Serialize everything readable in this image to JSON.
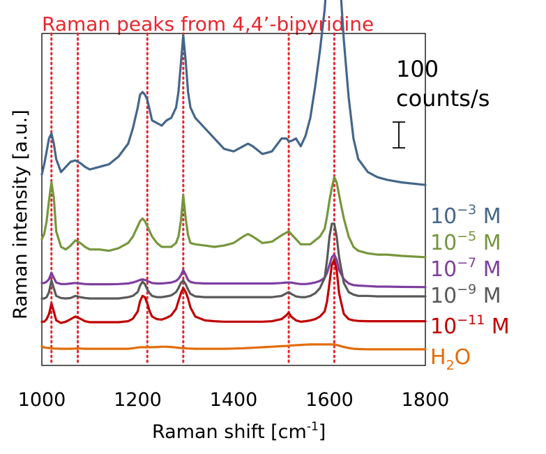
{
  "chart_data": {
    "type": "line",
    "title": "Raman peaks from 4,4’-bipyridine",
    "xlabel": "Raman shift [cm",
    "xlabel_sup": "-1",
    "xlabel_close": "]",
    "ylabel": "Raman intensity [a.u.]",
    "xlim": [
      1000,
      1800
    ],
    "x_ticks": [
      "1000",
      "1200",
      "1400",
      "1600",
      "1800"
    ],
    "x_tick_values": [
      1000,
      1200,
      1400,
      1600,
      1800
    ],
    "scale_bar": {
      "value_text": "100",
      "unit_text": "counts/s",
      "counts": 100
    },
    "peak_markers": [
      1020,
      1075,
      1220,
      1295,
      1515,
      1610
    ],
    "peak_marker_color": "#e8262d",
    "title_color": "#e8262d",
    "x": [
      1000,
      1005,
      1010,
      1015,
      1020,
      1025,
      1030,
      1040,
      1050,
      1060,
      1070,
      1080,
      1090,
      1100,
      1120,
      1140,
      1160,
      1180,
      1190,
      1200,
      1205,
      1210,
      1215,
      1220,
      1225,
      1230,
      1240,
      1250,
      1260,
      1270,
      1280,
      1285,
      1290,
      1295,
      1300,
      1305,
      1310,
      1320,
      1340,
      1360,
      1380,
      1400,
      1420,
      1430,
      1440,
      1460,
      1480,
      1500,
      1510,
      1515,
      1520,
      1530,
      1540,
      1550,
      1560,
      1570,
      1580,
      1590,
      1595,
      1600,
      1605,
      1610,
      1615,
      1620,
      1630,
      1640,
      1650,
      1660,
      1680,
      1700,
      1720,
      1750,
      1800
    ],
    "series": [
      {
        "name_base": "10",
        "name_sup": "−3",
        "name_suffix": " M",
        "color": "#44668a",
        "values": [
          480,
          520,
          570,
          620,
          640,
          600,
          540,
          490,
          510,
          530,
          535,
          525,
          510,
          500,
          510,
          520,
          550,
          600,
          660,
          740,
          790,
          800,
          790,
          770,
          730,
          690,
          680,
          670,
          690,
          700,
          740,
          800,
          910,
          1020,
          920,
          800,
          740,
          700,
          660,
          620,
          580,
          570,
          590,
          600,
          590,
          560,
          570,
          620,
          620,
          610,
          610,
          620,
          590,
          630,
          700,
          820,
          960,
          1120,
          1250,
          1380,
          1450,
          1460,
          1420,
          1280,
          1000,
          780,
          620,
          540,
          490,
          470,
          460,
          450,
          440
        ]
      },
      {
        "name_base": "10",
        "name_sup": "−5",
        "name_suffix": " M",
        "color": "#76963c",
        "values": [
          230,
          250,
          300,
          380,
          450,
          390,
          260,
          200,
          190,
          205,
          225,
          215,
          200,
          190,
          190,
          185,
          195,
          215,
          240,
          280,
          300,
          310,
          300,
          280,
          260,
          240,
          215,
          200,
          200,
          200,
          215,
          240,
          300,
          400,
          310,
          245,
          215,
          210,
          205,
          200,
          205,
          215,
          240,
          250,
          240,
          215,
          220,
          245,
          255,
          260,
          250,
          230,
          210,
          210,
          210,
          225,
          240,
          270,
          320,
          380,
          430,
          470,
          450,
          400,
          310,
          240,
          200,
          185,
          175,
          170,
          170,
          165,
          160
        ]
      },
      {
        "name_base": "10",
        "name_sup": "−7",
        "name_suffix": " M",
        "color": "#7d3fa0",
        "values": [
          60,
          60,
          65,
          75,
          100,
          80,
          62,
          56,
          56,
          58,
          60,
          58,
          56,
          55,
          55,
          55,
          56,
          58,
          62,
          68,
          72,
          74,
          72,
          68,
          64,
          60,
          58,
          58,
          60,
          62,
          68,
          76,
          90,
          110,
          92,
          72,
          64,
          60,
          58,
          58,
          58,
          58,
          58,
          58,
          58,
          58,
          58,
          60,
          62,
          62,
          62,
          58,
          56,
          56,
          58,
          62,
          68,
          80,
          100,
          130,
          160,
          170,
          150,
          110,
          75,
          58,
          52,
          50,
          48,
          46,
          46,
          45,
          44
        ]
      },
      {
        "name_base": "10",
        "name_sup": "−9",
        "name_suffix": " M",
        "color": "#595959",
        "values": [
          0,
          0,
          5,
          25,
          70,
          40,
          10,
          2,
          0,
          2,
          10,
          5,
          2,
          0,
          0,
          0,
          0,
          5,
          10,
          25,
          50,
          65,
          55,
          35,
          20,
          10,
          5,
          5,
          8,
          12,
          25,
          40,
          60,
          70,
          55,
          35,
          18,
          8,
          5,
          5,
          5,
          5,
          5,
          5,
          5,
          5,
          5,
          10,
          20,
          25,
          18,
          8,
          5,
          5,
          10,
          20,
          40,
          80,
          150,
          240,
          290,
          290,
          240,
          160,
          60,
          25,
          15,
          10,
          10,
          8,
          8,
          8,
          8
        ]
      },
      {
        "name_base": "10",
        "name_sup": "−11",
        "name_suffix": " M",
        "color": "#c00000",
        "values": [
          -90,
          -90,
          -80,
          -60,
          -20,
          -50,
          -85,
          -95,
          -90,
          -80,
          -70,
          -78,
          -88,
          -92,
          -92,
          -92,
          -92,
          -88,
          -78,
          -50,
          -10,
          10,
          5,
          -20,
          -50,
          -70,
          -80,
          -82,
          -75,
          -65,
          -40,
          -10,
          20,
          40,
          25,
          0,
          -35,
          -70,
          -85,
          -88,
          -90,
          -90,
          -90,
          -90,
          -90,
          -90,
          -88,
          -80,
          -65,
          -55,
          -70,
          -85,
          -90,
          -88,
          -85,
          -80,
          -70,
          -50,
          -10,
          60,
          130,
          150,
          110,
          20,
          -60,
          -80,
          -85,
          -87,
          -88,
          -88,
          -88,
          -88,
          -88
        ]
      },
      {
        "name_base": "H",
        "name_sub": "2",
        "name_suffix": "O",
        "color": "#e36c0a",
        "values": [
          -185,
          -190,
          -191,
          -192,
          -193,
          -194,
          -194,
          -195,
          -195,
          -195,
          -194,
          -194,
          -195,
          -195,
          -195,
          -195,
          -195,
          -195,
          -193,
          -190,
          -189,
          -189,
          -189,
          -189,
          -189,
          -189,
          -188,
          -187,
          -187,
          -188,
          -190,
          -191,
          -192,
          -193,
          -193,
          -194,
          -194,
          -195,
          -195,
          -195,
          -195,
          -194,
          -193,
          -192,
          -191,
          -189,
          -187,
          -185,
          -184,
          -183,
          -182,
          -181,
          -180,
          -179,
          -178,
          -178,
          -178,
          -178,
          -178,
          -178,
          -178,
          -178,
          -180,
          -183,
          -188,
          -192,
          -195,
          -196,
          -197,
          -197,
          -197,
          -197,
          -197
        ]
      }
    ]
  }
}
